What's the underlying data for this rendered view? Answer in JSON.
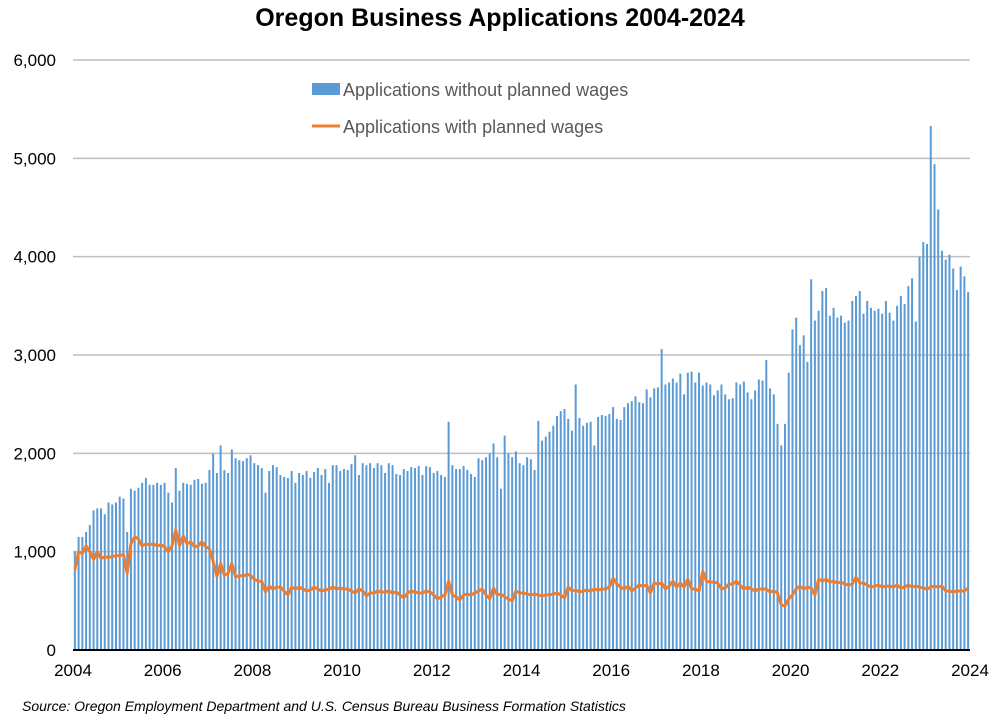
{
  "chart_data": {
    "type": "bar",
    "title": "Oregon Business Applications 2004-2024",
    "source": "Source: Oregon Employment Department and U.S. Census Bureau Business Formation Statistics",
    "xlabel": "",
    "ylabel": "",
    "ylim": [
      0,
      6000
    ],
    "yticks": [
      "0",
      "1,000",
      "2,000",
      "3,000",
      "4,000",
      "5,000",
      "6,000"
    ],
    "ytick_values": [
      0,
      1000,
      2000,
      3000,
      4000,
      5000,
      6000
    ],
    "xticks": [
      "2004",
      "2006",
      "2008",
      "2010",
      "2012",
      "2014",
      "2016",
      "2018",
      "2020",
      "2022",
      "2024"
    ],
    "x_start": "2004-01",
    "frequency": "monthly",
    "grid": true,
    "legend_position": "top-center",
    "colors": {
      "bars": "#5B9BD5",
      "line": "#ED7D31",
      "grid": "#BFBFBF"
    },
    "series": [
      {
        "name": "Applications without planned wages",
        "type": "bar",
        "values": [
          1000,
          1150,
          1150,
          1200,
          1270,
          1420,
          1440,
          1440,
          1380,
          1500,
          1480,
          1500,
          1560,
          1540,
          1200,
          1640,
          1620,
          1650,
          1700,
          1750,
          1680,
          1680,
          1700,
          1680,
          1700,
          1600,
          1500,
          1850,
          1620,
          1700,
          1690,
          1680,
          1730,
          1740,
          1690,
          1700,
          1830,
          2000,
          1800,
          2080,
          1830,
          1800,
          2040,
          1950,
          1930,
          1920,
          1950,
          1980,
          1900,
          1880,
          1850,
          1600,
          1820,
          1880,
          1860,
          1780,
          1760,
          1750,
          1820,
          1700,
          1800,
          1780,
          1820,
          1750,
          1810,
          1850,
          1780,
          1840,
          1700,
          1880,
          1880,
          1820,
          1840,
          1830,
          1890,
          1980,
          1780,
          1900,
          1880,
          1900,
          1850,
          1900,
          1880,
          1800,
          1900,
          1880,
          1790,
          1780,
          1840,
          1820,
          1860,
          1850,
          1870,
          1780,
          1870,
          1860,
          1800,
          1820,
          1780,
          1760,
          2320,
          1880,
          1840,
          1840,
          1870,
          1830,
          1790,
          1760,
          1950,
          1930,
          1960,
          2000,
          2100,
          1960,
          1640,
          2180,
          2000,
          1960,
          2020,
          1900,
          1880,
          1960,
          1940,
          1830,
          2330,
          2130,
          2170,
          2220,
          2280,
          2380,
          2430,
          2450,
          2350,
          2230,
          2700,
          2360,
          2280,
          2310,
          2320,
          2080,
          2370,
          2390,
          2380,
          2400,
          2470,
          2350,
          2340,
          2470,
          2510,
          2530,
          2580,
          2520,
          2510,
          2650,
          2570,
          2660,
          2670,
          3060,
          2700,
          2720,
          2760,
          2720,
          2810,
          2600,
          2820,
          2830,
          2720,
          2820,
          2690,
          2720,
          2700,
          2590,
          2640,
          2700,
          2600,
          2550,
          2560,
          2720,
          2700,
          2730,
          2620,
          2550,
          2640,
          2750,
          2740,
          2950,
          2660,
          2600,
          2300,
          2080,
          2300,
          2820,
          3260,
          3380,
          3100,
          3200,
          2930,
          3770,
          3350,
          3450,
          3650,
          3680,
          3400,
          3480,
          3380,
          3400,
          3330,
          3350,
          3550,
          3600,
          3650,
          3420,
          3550,
          3480,
          3450,
          3470,
          3420,
          3550,
          3430,
          3350,
          3500,
          3600,
          3520,
          3700,
          3780,
          3340,
          4000,
          4150,
          4130,
          5330,
          4940,
          4480,
          4060,
          3970,
          4020,
          3880,
          3660,
          3900,
          3800,
          3640
        ]
      },
      {
        "name": "Applications with planned wages",
        "type": "line",
        "values": [
          820,
          1000,
          980,
          1060,
          1000,
          920,
          1000,
          930,
          950,
          940,
          950,
          960,
          960,
          970,
          780,
          1080,
          1150,
          1130,
          1060,
          1080,
          1070,
          1080,
          1060,
          1070,
          1050,
          1000,
          1060,
          1220,
          1060,
          1160,
          1080,
          1100,
          1050,
          1060,
          1100,
          1050,
          1030,
          900,
          750,
          880,
          760,
          780,
          880,
          740,
          760,
          750,
          770,
          760,
          720,
          700,
          700,
          590,
          650,
          620,
          640,
          640,
          600,
          560,
          640,
          620,
          640,
          620,
          600,
          610,
          640,
          620,
          600,
          610,
          620,
          640,
          620,
          630,
          620,
          620,
          600,
          580,
          620,
          600,
          550,
          580,
          580,
          600,
          590,
          590,
          600,
          580,
          590,
          560,
          530,
          580,
          600,
          590,
          580,
          580,
          600,
          590,
          560,
          520,
          540,
          560,
          700,
          560,
          540,
          510,
          560,
          570,
          560,
          580,
          600,
          620,
          560,
          520,
          630,
          560,
          570,
          540,
          520,
          500,
          600,
          580,
          580,
          570,
          560,
          570,
          560,
          550,
          560,
          560,
          570,
          580,
          560,
          530,
          640,
          600,
          610,
          590,
          600,
          610,
          600,
          620,
          610,
          620,
          620,
          640,
          730,
          670,
          640,
          620,
          650,
          600,
          630,
          660,
          650,
          660,
          580,
          680,
          670,
          680,
          620,
          650,
          700,
          640,
          680,
          640,
          720,
          620,
          620,
          600,
          800,
          700,
          690,
          690,
          680,
          620,
          630,
          670,
          670,
          700,
          660,
          620,
          640,
          620,
          600,
          620,
          620,
          620,
          590,
          600,
          580,
          460,
          450,
          520,
          560,
          620,
          650,
          620,
          640,
          630,
          560,
          720,
          700,
          720,
          690,
          700,
          680,
          690,
          670,
          660,
          670,
          740,
          680,
          680,
          660,
          640,
          650,
          660,
          640,
          650,
          650,
          640,
          660,
          630,
          640,
          660,
          640,
          650,
          640,
          630,
          620,
          640,
          650,
          640,
          650,
          600,
          600,
          590,
          600,
          600,
          600,
          630
        ]
      }
    ]
  }
}
